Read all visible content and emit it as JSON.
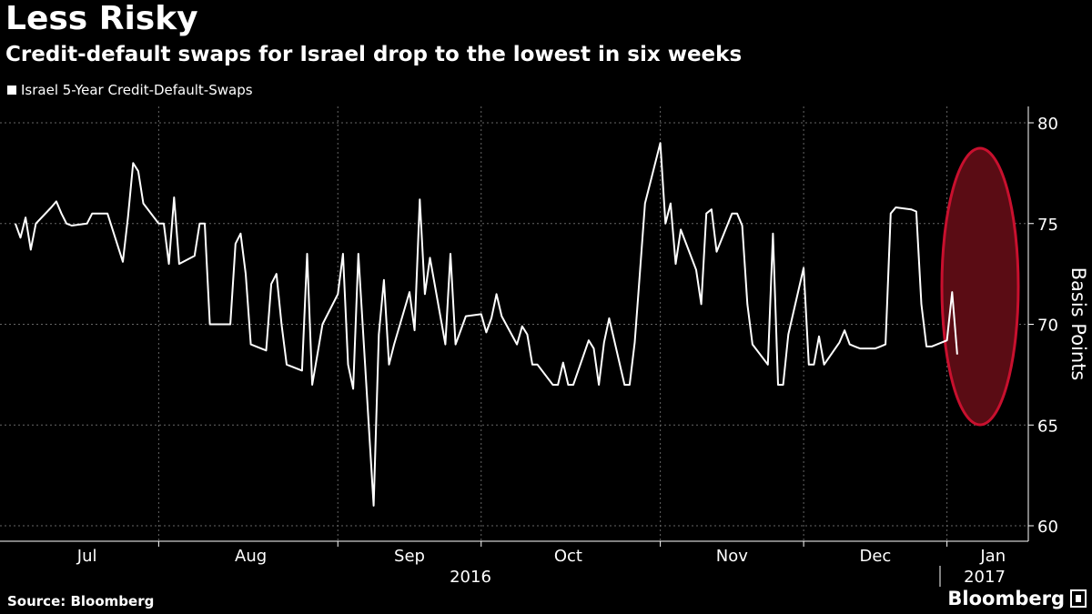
{
  "header": {
    "title": "Less Risky",
    "subtitle": "Credit-default swaps for Israel drop to the lowest in six weeks"
  },
  "footer": {
    "source": "Source: Bloomberg",
    "brand": "Bloomberg",
    "brand_icon": "bloomberg-terminal-icon"
  },
  "colors": {
    "background": "#000000",
    "line": "#ffffff",
    "grid": "#666666",
    "highlight_fill": "#5a0c14",
    "highlight_stroke": "#c8102e"
  },
  "chart_data": {
    "type": "line",
    "title": "Less Risky",
    "subtitle": "Credit-default swaps for Israel drop to the lowest in six weeks",
    "ylabel": "Basis Points",
    "ylim": [
      60,
      80
    ],
    "yticks": [
      60,
      65,
      70,
      75,
      80
    ],
    "y_axis_side": "right",
    "grid": true,
    "legend_position": "top-left",
    "x_month_labels": [
      "Jul",
      "Aug",
      "Sep",
      "Oct",
      "Nov",
      "Dec",
      "Jan"
    ],
    "x_year_labels": [
      "2016",
      "2017"
    ],
    "highlight": "ellipse around the final week of readings (late Dec 2016 – early Jan 2017)",
    "series": [
      {
        "name": "Israel 5-Year Credit-Default-Swaps",
        "points": [
          [
            "2016-06-27",
            75.0
          ],
          [
            "2016-06-28",
            74.3
          ],
          [
            "2016-06-29",
            75.3
          ],
          [
            "2016-06-30",
            73.7
          ],
          [
            "2016-07-01",
            75.0
          ],
          [
            "2016-07-04",
            75.8
          ],
          [
            "2016-07-05",
            76.1
          ],
          [
            "2016-07-06",
            75.5
          ],
          [
            "2016-07-07",
            75.0
          ],
          [
            "2016-07-08",
            74.9
          ],
          [
            "2016-07-11",
            75.0
          ],
          [
            "2016-07-12",
            75.5
          ],
          [
            "2016-07-13",
            75.5
          ],
          [
            "2016-07-14",
            75.5
          ],
          [
            "2016-07-15",
            75.5
          ],
          [
            "2016-07-18",
            73.1
          ],
          [
            "2016-07-19",
            75.3
          ],
          [
            "2016-07-20",
            78.0
          ],
          [
            "2016-07-21",
            77.6
          ],
          [
            "2016-07-22",
            76.0
          ],
          [
            "2016-07-25",
            75.0
          ],
          [
            "2016-07-26",
            75.0
          ],
          [
            "2016-07-27",
            73.0
          ],
          [
            "2016-07-28",
            76.3
          ],
          [
            "2016-07-29",
            73.0
          ],
          [
            "2016-08-01",
            73.4
          ],
          [
            "2016-08-02",
            75.0
          ],
          [
            "2016-08-03",
            75.0
          ],
          [
            "2016-08-04",
            70.0
          ],
          [
            "2016-08-05",
            70.0
          ],
          [
            "2016-08-08",
            70.0
          ],
          [
            "2016-08-09",
            74.0
          ],
          [
            "2016-08-10",
            74.5
          ],
          [
            "2016-08-11",
            72.5
          ],
          [
            "2016-08-12",
            69.0
          ],
          [
            "2016-08-15",
            68.7
          ],
          [
            "2016-08-16",
            72.0
          ],
          [
            "2016-08-17",
            72.5
          ],
          [
            "2016-08-18",
            70.0
          ],
          [
            "2016-08-19",
            68.0
          ],
          [
            "2016-08-22",
            67.7
          ],
          [
            "2016-08-23",
            73.5
          ],
          [
            "2016-08-24",
            67.0
          ],
          [
            "2016-08-25",
            68.5
          ],
          [
            "2016-08-26",
            70.0
          ],
          [
            "2016-08-29",
            71.5
          ],
          [
            "2016-08-30",
            73.5
          ],
          [
            "2016-08-31",
            68.0
          ],
          [
            "2016-09-01",
            66.8
          ],
          [
            "2016-09-02",
            73.5
          ],
          [
            "2016-09-05",
            61.0
          ],
          [
            "2016-09-06",
            69.5
          ],
          [
            "2016-09-07",
            72.2
          ],
          [
            "2016-09-08",
            68.0
          ],
          [
            "2016-09-09",
            69.0
          ],
          [
            "2016-09-12",
            71.6
          ],
          [
            "2016-09-13",
            69.7
          ],
          [
            "2016-09-14",
            76.2
          ],
          [
            "2016-09-15",
            71.5
          ],
          [
            "2016-09-16",
            73.3
          ],
          [
            "2016-09-19",
            69.0
          ],
          [
            "2016-09-20",
            73.5
          ],
          [
            "2016-09-21",
            69.0
          ],
          [
            "2016-09-22",
            69.7
          ],
          [
            "2016-09-23",
            70.4
          ],
          [
            "2016-09-26",
            70.5
          ],
          [
            "2016-09-27",
            69.6
          ],
          [
            "2016-09-28",
            70.3
          ],
          [
            "2016-09-29",
            71.5
          ],
          [
            "2016-09-30",
            70.4
          ],
          [
            "2016-10-03",
            69.0
          ],
          [
            "2016-10-04",
            69.9
          ],
          [
            "2016-10-05",
            69.5
          ],
          [
            "2016-10-06",
            68.0
          ],
          [
            "2016-10-07",
            68.0
          ],
          [
            "2016-10-10",
            67.0
          ],
          [
            "2016-10-11",
            67.0
          ],
          [
            "2016-10-12",
            68.1
          ],
          [
            "2016-10-13",
            67.0
          ],
          [
            "2016-10-14",
            67.0
          ],
          [
            "2016-10-17",
            69.2
          ],
          [
            "2016-10-18",
            68.8
          ],
          [
            "2016-10-19",
            67.0
          ],
          [
            "2016-10-20",
            69.1
          ],
          [
            "2016-10-21",
            70.3
          ],
          [
            "2016-10-24",
            67.0
          ],
          [
            "2016-10-25",
            67.0
          ],
          [
            "2016-10-26",
            69.1
          ],
          [
            "2016-10-27",
            72.5
          ],
          [
            "2016-10-28",
            76.0
          ],
          [
            "2016-10-31",
            79.0
          ],
          [
            "2016-11-01",
            75.0
          ],
          [
            "2016-11-02",
            76.0
          ],
          [
            "2016-11-03",
            73.0
          ],
          [
            "2016-11-04",
            74.7
          ],
          [
            "2016-11-07",
            72.7
          ],
          [
            "2016-11-08",
            71.0
          ],
          [
            "2016-11-09",
            75.5
          ],
          [
            "2016-11-10",
            75.7
          ],
          [
            "2016-11-11",
            73.6
          ],
          [
            "2016-11-14",
            75.5
          ],
          [
            "2016-11-15",
            75.5
          ],
          [
            "2016-11-16",
            74.9
          ],
          [
            "2016-11-17",
            71.0
          ],
          [
            "2016-11-18",
            69.0
          ],
          [
            "2016-11-21",
            68.0
          ],
          [
            "2016-11-22",
            74.5
          ],
          [
            "2016-11-23",
            67.0
          ],
          [
            "2016-11-24",
            67.0
          ],
          [
            "2016-11-25",
            69.5
          ],
          [
            "2016-11-28",
            72.8
          ],
          [
            "2016-11-29",
            68.0
          ],
          [
            "2016-11-30",
            68.0
          ],
          [
            "2016-12-01",
            69.4
          ],
          [
            "2016-12-02",
            68.0
          ],
          [
            "2016-12-05",
            69.1
          ],
          [
            "2016-12-06",
            69.7
          ],
          [
            "2016-12-07",
            69.0
          ],
          [
            "2016-12-08",
            68.9
          ],
          [
            "2016-12-09",
            68.8
          ],
          [
            "2016-12-12",
            68.8
          ],
          [
            "2016-12-13",
            68.9
          ],
          [
            "2016-12-14",
            69.0
          ],
          [
            "2016-12-15",
            75.5
          ],
          [
            "2016-12-16",
            75.8
          ],
          [
            "2016-12-19",
            75.7
          ],
          [
            "2016-12-20",
            75.6
          ],
          [
            "2016-12-21",
            71.0
          ],
          [
            "2016-12-22",
            68.9
          ],
          [
            "2016-12-23",
            68.9
          ],
          [
            "2016-12-26",
            69.2
          ],
          [
            "2016-12-27",
            71.6
          ],
          [
            "2016-12-28",
            68.5
          ]
        ]
      }
    ]
  }
}
